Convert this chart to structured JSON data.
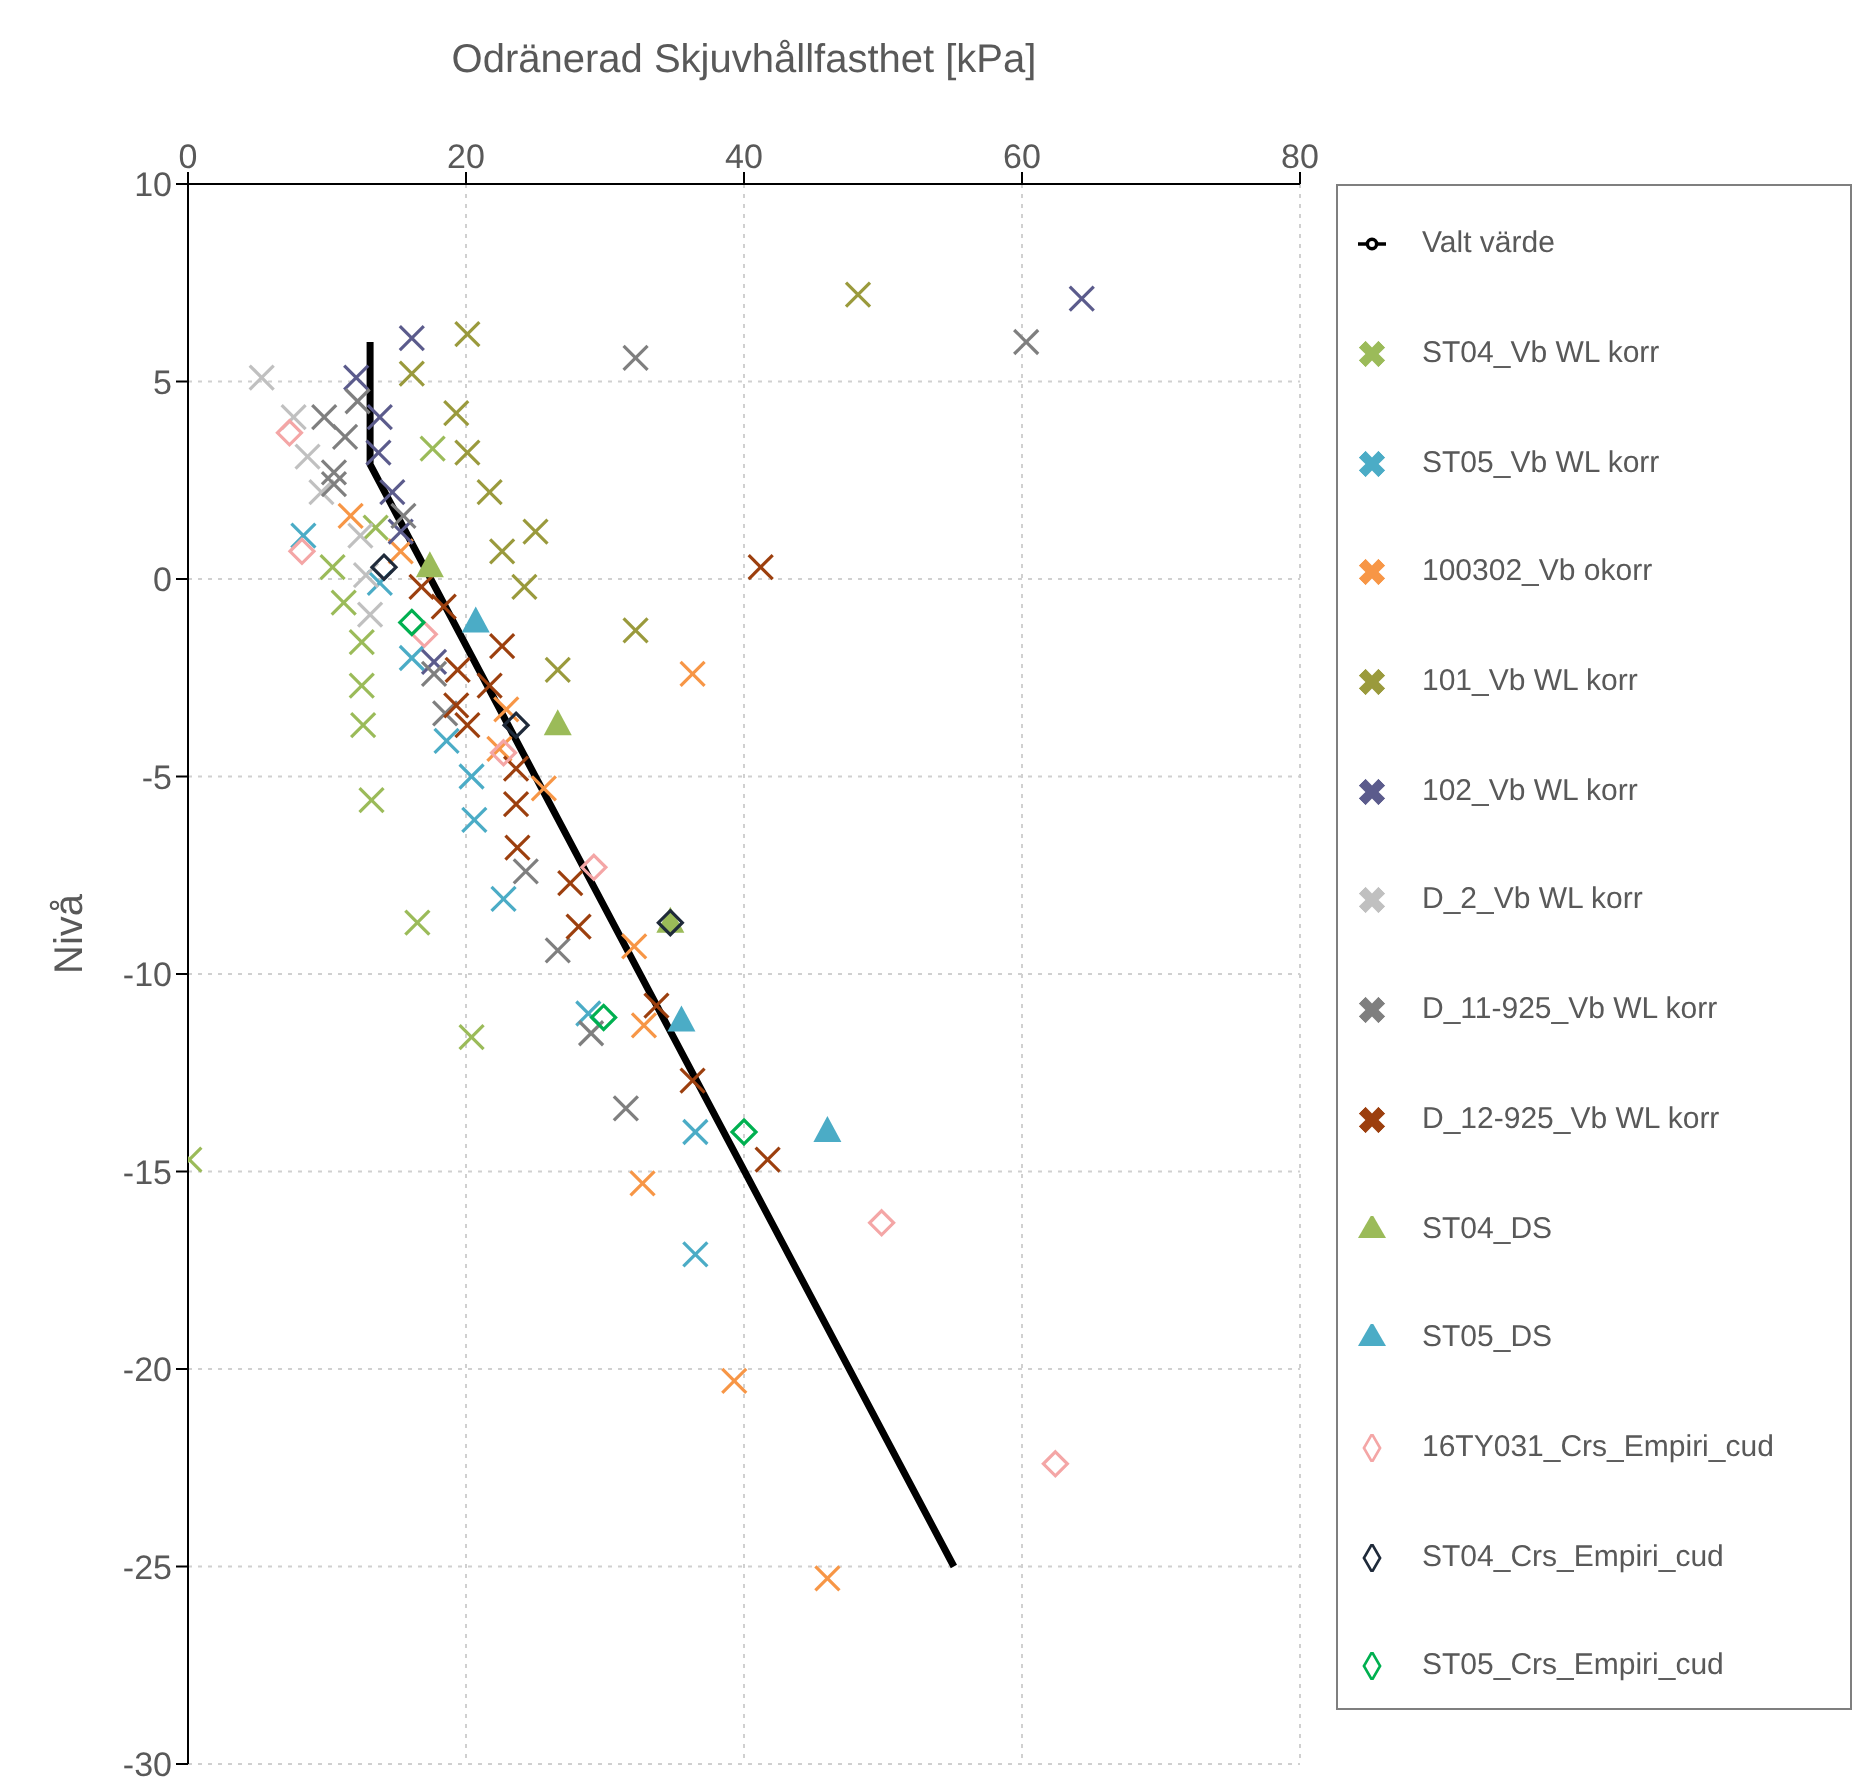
{
  "chart_data": {
    "type": "scatter",
    "xlabel": "Odränerad Skjuvhållfasthet [kPa]",
    "ylabel": "Nivå",
    "xlim": [
      0,
      80
    ],
    "xticks": [
      0,
      20,
      40,
      60,
      80
    ],
    "ylim": [
      -30,
      10
    ],
    "yticks": [
      -30,
      -25,
      -20,
      -15,
      -10,
      -5,
      0,
      5,
      10
    ],
    "grid": true,
    "legend": "right",
    "series": [
      {
        "name": "Valt värde",
        "type": "line",
        "color": "#000000",
        "marker": "none",
        "x": [
          13.1,
          13.1,
          55.1
        ],
        "values": [
          6.0,
          2.9,
          -25.0
        ]
      },
      {
        "name": "ST04_Vb WL korr",
        "color": "#9bbb59",
        "marker": "cross",
        "x": [
          17.6,
          13.5,
          10.4,
          11.2,
          12.5,
          12.5,
          12.6,
          13.2,
          16.5,
          20.4,
          0.1
        ],
        "values": [
          3.3,
          1.3,
          0.3,
          -0.6,
          -1.6,
          -2.7,
          -3.7,
          -5.6,
          -8.7,
          -11.6,
          -14.7
        ]
      },
      {
        "name": "ST05_Vb WL korr",
        "color": "#4bacc6",
        "marker": "cross",
        "x": [
          8.3,
          13.8,
          16.1,
          18.6,
          20.4,
          20.6,
          22.7,
          28.8,
          36.5,
          36.5
        ],
        "values": [
          1.1,
          -0.1,
          -2.0,
          -4.1,
          -5.0,
          -6.1,
          -8.1,
          -11.0,
          -14.0,
          -17.1
        ]
      },
      {
        "name": "100302_Vb okorr",
        "color": "#f79646",
        "marker": "cross",
        "x": [
          11.7,
          15.3,
          36.3,
          22.9,
          22.4,
          25.6,
          32.1,
          32.8,
          32.7,
          39.3,
          46.0
        ],
        "values": [
          1.6,
          0.7,
          -2.4,
          -3.3,
          -4.3,
          -5.3,
          -9.3,
          -11.3,
          -15.3,
          -20.3,
          -25.3
        ]
      },
      {
        "name": "101_Vb WL korr",
        "color": "#9a9a3c",
        "marker": "cross",
        "x": [
          20.1,
          16.1,
          19.3,
          20.1,
          21.7,
          25.0,
          22.6,
          24.2,
          26.6,
          48.2,
          32.2
        ],
        "values": [
          6.2,
          5.2,
          4.2,
          3.2,
          2.2,
          1.2,
          0.7,
          -0.2,
          -2.3,
          7.2,
          -1.3
        ]
      },
      {
        "name": "102_Vb WL korr",
        "color": "#5b5b8c",
        "marker": "cross",
        "x": [
          64.3,
          16.1,
          12.1,
          13.8,
          13.7,
          14.7,
          15.3,
          17.7
        ],
        "values": [
          7.1,
          6.1,
          5.1,
          4.1,
          3.2,
          2.2,
          1.2,
          -2.1
        ]
      },
      {
        "name": "D_2_Vb WL korr",
        "color": "#c0c0c0",
        "marker": "cross",
        "x": [
          5.3,
          7.6,
          8.6,
          9.6,
          12.4,
          12.8,
          13.1
        ],
        "values": [
          5.1,
          4.1,
          3.1,
          2.2,
          1.1,
          0.1,
          -0.9
        ]
      },
      {
        "name": "D_11-925_Vb WL korr",
        "color": "#7f7f7f",
        "marker": "cross",
        "x": [
          32.2,
          60.3,
          12.2,
          9.8,
          11.3,
          10.5,
          10.5,
          15.5,
          17.7,
          18.5,
          24.3,
          26.6,
          29.0,
          31.5
        ],
        "values": [
          5.6,
          6.0,
          4.5,
          4.1,
          3.6,
          2.7,
          2.4,
          1.6,
          -2.4,
          -3.4,
          -7.4,
          -9.4,
          -11.5,
          -13.4
        ]
      },
      {
        "name": "D_12-925_Vb WL korr",
        "color": "#9c3f0e",
        "marker": "cross",
        "x": [
          41.2,
          16.8,
          18.4,
          22.6,
          19.4,
          21.7,
          19.3,
          20.1,
          23.6,
          23.6,
          23.7,
          27.5,
          28.1,
          33.7,
          36.3,
          41.7
        ],
        "values": [
          0.3,
          -0.2,
          -0.7,
          -1.7,
          -2.3,
          -2.7,
          -3.2,
          -3.7,
          -4.8,
          -5.7,
          -6.8,
          -7.7,
          -8.8,
          -10.8,
          -12.7,
          -14.7
        ]
      },
      {
        "name": "ST04_DS",
        "color": "#9bbb59",
        "marker": "triangle",
        "x": [
          17.4,
          26.6,
          34.7
        ],
        "values": [
          0.3,
          -3.7,
          -8.7
        ]
      },
      {
        "name": "ST05_DS",
        "color": "#4bacc6",
        "marker": "triangle",
        "x": [
          20.7,
          35.5,
          46.0
        ],
        "values": [
          -1.1,
          -11.2,
          -14.0
        ]
      },
      {
        "name": "16TY031_Crs_Empiri_cud",
        "color": "#f4a6a6",
        "marker": "diamond",
        "x": [
          7.3,
          8.2,
          17.0,
          22.7,
          29.2,
          49.9,
          62.4
        ],
        "values": [
          3.7,
          0.7,
          -1.4,
          -4.4,
          -7.3,
          -16.3,
          -22.4
        ]
      },
      {
        "name": "ST04_Crs_Empiri_cud",
        "color": "#1f2a3a",
        "marker": "diamond",
        "x": [
          14.1,
          23.6,
          34.7
        ],
        "values": [
          0.3,
          -3.7,
          -8.7
        ]
      },
      {
        "name": "ST05_Crs_Empiri_cud",
        "color": "#00b050",
        "marker": "diamond",
        "x": [
          16.1,
          29.9,
          40.0
        ],
        "values": [
          -1.1,
          -11.1,
          -14.0
        ]
      }
    ]
  }
}
